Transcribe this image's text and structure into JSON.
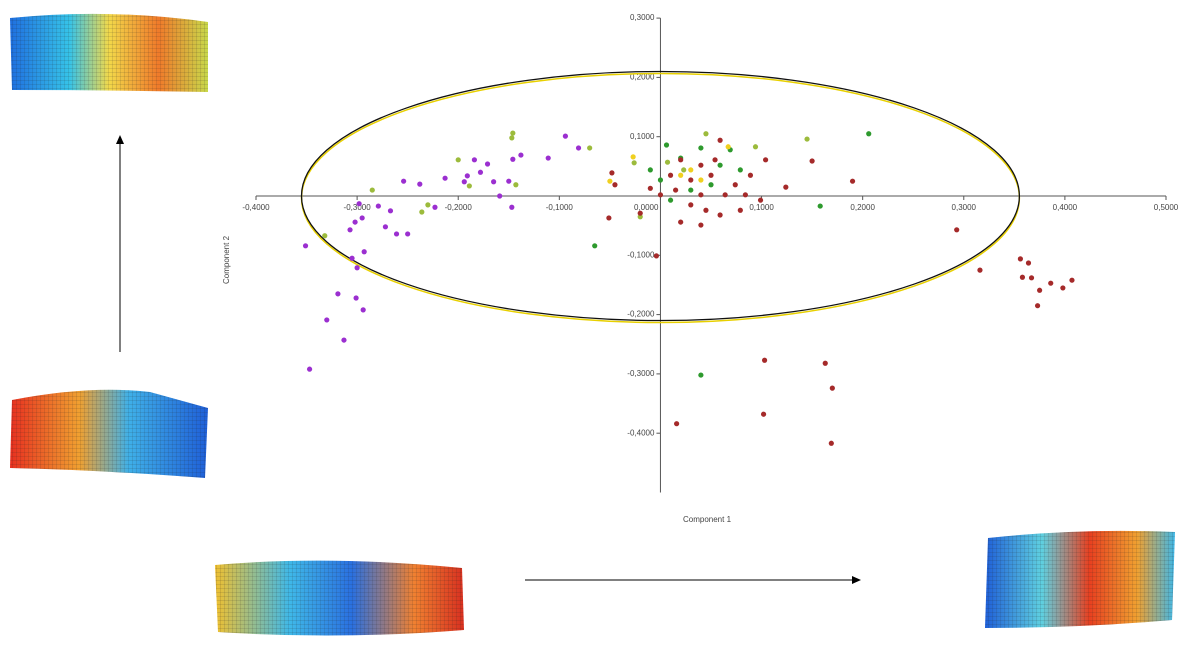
{
  "chart_data": {
    "type": "scatter",
    "xlabel": "Component 1",
    "ylabel": "Component 2",
    "xlim": [
      -0.4,
      0.5
    ],
    "ylim": [
      -0.5,
      0.3
    ],
    "xticks": [
      {
        "value": -0.4,
        "label": "-0,4000"
      },
      {
        "value": -0.3,
        "label": "-0,3000"
      },
      {
        "value": -0.2,
        "label": "-0,2000"
      },
      {
        "value": -0.1,
        "label": "-0,1000"
      },
      {
        "value": 0,
        "label": "0,0000"
      },
      {
        "value": 0.1,
        "label": "0,1000"
      },
      {
        "value": 0.2,
        "label": "0,2000"
      },
      {
        "value": 0.3,
        "label": "0,3000"
      },
      {
        "value": 0.4,
        "label": "0,4000"
      },
      {
        "value": 0.5,
        "label": "0,5000"
      }
    ],
    "yticks": [
      {
        "value": 0.3,
        "label": "0,3000"
      },
      {
        "value": 0.2,
        "label": "0,2000"
      },
      {
        "value": 0.1,
        "label": "0,1000"
      },
      {
        "value": -0.1,
        "label": "-0,1000"
      },
      {
        "value": -0.2,
        "label": "-0,2000"
      },
      {
        "value": -0.3,
        "label": "-0,3000"
      },
      {
        "value": -0.4,
        "label": "-0,4000"
      }
    ],
    "ellipse": {
      "cx": 0,
      "cy": 0,
      "rx": 0.355,
      "ry": 0.21
    },
    "series": [
      {
        "color": "#9b2fd0",
        "x": [
          -0.351,
          -0.33,
          -0.319,
          -0.313,
          -0.307,
          -0.305,
          -0.302,
          -0.3,
          -0.301,
          -0.294,
          -0.298,
          -0.295,
          -0.293,
          -0.279,
          -0.272,
          -0.261,
          -0.25,
          -0.238,
          -0.254,
          -0.267,
          -0.223,
          -0.213,
          -0.194,
          -0.191,
          -0.184,
          -0.178,
          -0.171,
          -0.165,
          -0.159,
          -0.15,
          -0.147,
          -0.138,
          -0.146,
          -0.111,
          -0.094,
          -0.081,
          -0.347
        ],
        "y": [
          -0.084,
          -0.209,
          -0.165,
          -0.243,
          -0.057,
          -0.105,
          -0.044,
          -0.121,
          -0.172,
          -0.192,
          -0.013,
          -0.037,
          -0.094,
          -0.017,
          -0.052,
          -0.064,
          -0.064,
          0.02,
          0.025,
          -0.025,
          -0.019,
          0.03,
          0.024,
          0.034,
          0.061,
          0.04,
          0.054,
          0.024,
          0.0,
          0.025,
          -0.019,
          0.069,
          0.062,
          0.064,
          0.101,
          0.081,
          -0.292
        ]
      },
      {
        "color": "#9cbb3c",
        "x": [
          -0.332,
          -0.285,
          -0.236,
          -0.23,
          -0.2,
          -0.189,
          -0.147,
          -0.146,
          -0.143,
          -0.07,
          -0.026,
          0.007,
          0.045,
          0.094,
          0.145,
          -0.02,
          0.023
        ],
        "y": [
          -0.067,
          0.01,
          -0.027,
          -0.015,
          0.061,
          0.017,
          0.098,
          0.106,
          0.019,
          0.081,
          0.056,
          0.057,
          0.105,
          0.083,
          0.096,
          -0.035,
          0.044
        ]
      },
      {
        "color": "#2e9a2e",
        "x": [
          -0.065,
          0.006,
          0.04,
          0.158,
          0.206,
          -0.01,
          0.02,
          0.04,
          0.059,
          0.079,
          0.03,
          0.0,
          0.05,
          0.01,
          0.069
        ],
        "y": [
          -0.084,
          0.086,
          -0.302,
          -0.017,
          0.105,
          0.044,
          0.064,
          0.081,
          0.052,
          0.044,
          0.01,
          0.027,
          0.019,
          -0.007,
          0.078
        ]
      },
      {
        "color": "#f0d020",
        "x": [
          -0.05,
          -0.027,
          0.03,
          0.067,
          0.02,
          0.04
        ],
        "y": [
          0.025,
          0.066,
          0.044,
          0.083,
          0.035,
          0.027
        ]
      },
      {
        "color": "#a52a2a",
        "x": [
          -0.004,
          -0.048,
          -0.045,
          -0.051,
          -0.02,
          0.016,
          0.103,
          0.102,
          0.163,
          0.17,
          0.169,
          0.293,
          0.316,
          0.356,
          0.364,
          0.367,
          0.358,
          0.375,
          0.373,
          0.386,
          0.398,
          0.407,
          0.15,
          0.19,
          0.124,
          0.099,
          0.079,
          0.059,
          0.04,
          0.02,
          0.03,
          0.0,
          0.01,
          0.02,
          0.04,
          0.05,
          0.059,
          0.074,
          0.089,
          0.104,
          0.04,
          -0.01,
          0.064,
          0.084,
          0.015,
          0.03,
          0.054,
          0.045
        ],
        "y": [
          -0.101,
          0.039,
          0.019,
          -0.037,
          -0.029,
          -0.384,
          -0.277,
          -0.368,
          -0.282,
          -0.324,
          -0.417,
          -0.057,
          -0.125,
          -0.106,
          -0.113,
          -0.138,
          -0.137,
          -0.159,
          -0.185,
          -0.147,
          -0.155,
          -0.142,
          0.059,
          0.025,
          0.015,
          -0.007,
          -0.024,
          -0.032,
          -0.049,
          -0.044,
          -0.015,
          0.002,
          0.035,
          0.061,
          0.052,
          0.035,
          0.094,
          0.019,
          0.035,
          0.061,
          0.002,
          0.013,
          0.002,
          0.002,
          0.01,
          0.027,
          0.061,
          -0.024
        ]
      }
    ]
  }
}
